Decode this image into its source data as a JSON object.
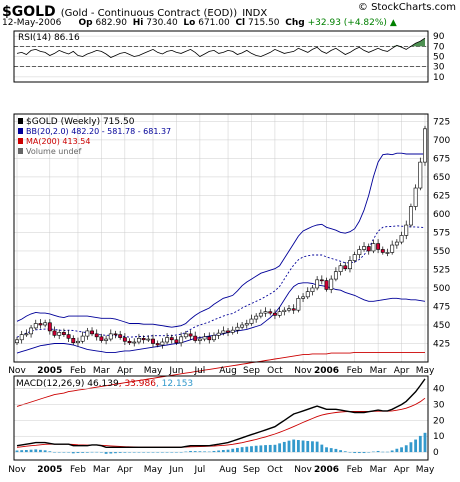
{
  "header": {
    "symbol": "$GOLD",
    "description": "(Gold - Continuous Contract (EOD))",
    "exchange": "INDX",
    "logo": "© StockCharts.com",
    "date": "12-May-2006",
    "open_label": "Op",
    "open": "682.90",
    "high_label": "Hi",
    "high": "730.40",
    "low_label": "Lo",
    "low": "671.00",
    "close_label": "Cl",
    "close": "715.50",
    "change_label": "Chg",
    "change": "+32.93 (+4.82%)",
    "change_arrow": "▲"
  },
  "colors": {
    "price_bar": "#000000",
    "up_candle": "#ffffff",
    "down_candle": "#cc0033",
    "bollinger": "#000099",
    "ma200": "#cc0000",
    "rsi_line": "#000000",
    "rsi_fill": "#2e7d32",
    "macd_line": "#000000",
    "macd_signal": "#cc0000",
    "macd_hist": "#3399cc",
    "grid": "#cccccc"
  },
  "chart_data": [
    {
      "type": "line",
      "name": "rsi",
      "label": "RSI(14) 86.16",
      "y_ticks": [
        90,
        70,
        50,
        30,
        10
      ],
      "ylim": [
        0,
        100
      ],
      "reference_lines": [
        70,
        30
      ],
      "values": [
        56,
        58,
        54,
        62,
        64,
        60,
        58,
        52,
        56,
        62,
        58,
        55,
        60,
        52,
        50,
        55,
        58,
        62,
        60,
        55,
        48,
        52,
        56,
        58,
        54,
        50,
        52,
        56,
        60,
        64,
        58,
        55,
        60,
        62,
        58,
        56,
        60,
        64,
        58,
        50,
        55,
        60,
        62,
        56,
        58,
        62,
        60,
        54,
        57,
        62,
        56,
        52,
        50,
        54,
        58,
        64,
        60,
        56,
        58,
        60,
        66,
        62,
        58,
        64,
        68,
        60,
        56,
        62,
        66,
        60,
        54,
        58,
        64,
        68,
        62,
        58,
        62,
        66,
        62,
        60,
        66,
        72,
        68,
        64,
        70,
        76,
        80,
        86
      ]
    },
    {
      "type": "candlestick",
      "name": "price",
      "legend": [
        {
          "key": "price",
          "text": "$GOLD (Weekly) 715.50"
        },
        {
          "key": "bb",
          "text": "BB(20,2.0) 482.20 - 581.78 - 681.37"
        },
        {
          "key": "ma",
          "text": "MA(200) 413.54"
        },
        {
          "key": "vol",
          "text": "Volume undef"
        }
      ],
      "y_ticks": [
        725,
        700,
        675,
        650,
        625,
        600,
        575,
        550,
        525,
        500,
        475,
        450,
        425
      ],
      "ylim": [
        400,
        735
      ],
      "x_labels": [
        "Nov",
        "2005",
        "Feb",
        "Mar",
        "Apr",
        "May",
        "Jun",
        "Jul",
        "Aug",
        "Sep",
        "Oct",
        "Nov",
        "2006",
        "Feb",
        "Mar",
        "Apr",
        "May"
      ],
      "close": [
        430,
        437,
        438,
        446,
        452,
        450,
        453,
        442,
        436,
        440,
        437,
        432,
        426,
        428,
        435,
        442,
        438,
        434,
        429,
        431,
        438,
        437,
        433,
        428,
        426,
        427,
        432,
        430,
        431,
        425,
        423,
        427,
        433,
        430,
        426,
        434,
        438,
        435,
        429,
        431,
        434,
        430,
        436,
        439,
        442,
        440,
        443,
        447,
        450,
        452,
        458,
        462,
        466,
        468,
        466,
        463,
        468,
        470,
        472,
        470,
        486,
        488,
        495,
        500,
        511,
        510,
        498,
        512,
        522,
        530,
        526,
        537,
        545,
        552,
        556,
        550,
        560,
        552,
        548,
        548,
        558,
        562,
        571,
        585,
        610,
        635,
        670,
        715
      ],
      "bb_upper": [
        455,
        458,
        462,
        465,
        467,
        466,
        466,
        465,
        463,
        461,
        460,
        462,
        462,
        462,
        462,
        462,
        461,
        460,
        459,
        459,
        459,
        458,
        456,
        454,
        452,
        452,
        452,
        451,
        451,
        451,
        450,
        449,
        448,
        447,
        448,
        449,
        452,
        458,
        463,
        467,
        470,
        473,
        478,
        482,
        486,
        488,
        490,
        496,
        503,
        508,
        512,
        516,
        520,
        522,
        524,
        526,
        530,
        540,
        550,
        560,
        570,
        577,
        580,
        583,
        585,
        586,
        582,
        580,
        578,
        575,
        574,
        576,
        580,
        590,
        605,
        625,
        650,
        670,
        680,
        681,
        680,
        682,
        682,
        681,
        681,
        681,
        681,
        681
      ],
      "bb_lower": [
        412,
        414,
        416,
        418,
        420,
        422,
        423,
        424,
        425,
        425,
        425,
        424,
        423,
        421,
        419,
        417,
        416,
        415,
        414,
        413,
        413,
        413,
        414,
        415,
        415,
        416,
        417,
        418,
        419,
        420,
        421,
        422,
        423,
        424,
        425,
        426,
        428,
        430,
        432,
        433,
        434,
        435,
        436,
        437,
        438,
        440,
        441,
        442,
        443,
        444,
        446,
        448,
        450,
        455,
        460,
        466,
        474,
        484,
        494,
        502,
        506,
        507,
        507,
        506,
        504,
        503,
        502,
        500,
        498,
        497,
        494,
        492,
        490,
        487,
        484,
        482,
        482,
        483,
        484,
        485,
        486,
        486,
        485,
        485,
        484,
        484,
        483,
        482
      ],
      "ma200": [
        340,
        342,
        344,
        346,
        348,
        350,
        352,
        354,
        356,
        357,
        358,
        360,
        361,
        362,
        363,
        364,
        365,
        366,
        367,
        368,
        369,
        370,
        371,
        372,
        373,
        374,
        375,
        376,
        377,
        378,
        379,
        380,
        381,
        382,
        383,
        384,
        385,
        386,
        387,
        388,
        389,
        390,
        391,
        392,
        393,
        394,
        395,
        396,
        397,
        398,
        399,
        400,
        401,
        402,
        403,
        404,
        405,
        406,
        407,
        408,
        409,
        410,
        410,
        411,
        411,
        411,
        411,
        412,
        412,
        412,
        412,
        412,
        413,
        413,
        413,
        413,
        413,
        413,
        413,
        413,
        413,
        413,
        413,
        413,
        413,
        413,
        413,
        413
      ]
    },
    {
      "type": "line",
      "name": "macd",
      "label_name": "MACD(12,26,9)",
      "macd_value": "46.139",
      "signal_value": "33.986",
      "hist_value": "12.153",
      "y_ticks": [
        40,
        30,
        20,
        10,
        0
      ],
      "ylim": [
        -5,
        48
      ],
      "x_labels": [
        "Nov",
        "2005",
        "Feb",
        "Mar",
        "Apr",
        "May",
        "Jun",
        "Jul",
        "Aug",
        "Sep",
        "Oct",
        "Nov",
        "2006",
        "Feb",
        "Mar",
        "Apr",
        "May"
      ],
      "macd": [
        4,
        4.5,
        5,
        5.5,
        6,
        6,
        6,
        5.5,
        5,
        5,
        5,
        5,
        4,
        4,
        4,
        4,
        4.5,
        4.5,
        4,
        3,
        3,
        3,
        3,
        3,
        3,
        3,
        3,
        3,
        3,
        3,
        3,
        3,
        3,
        3,
        3,
        3,
        3.5,
        4,
        4,
        4,
        4,
        4,
        4.5,
        5,
        5.5,
        6,
        7,
        8,
        9,
        10,
        11,
        12,
        13,
        14,
        15,
        16,
        18,
        20,
        22,
        24,
        25,
        26,
        27,
        28,
        29,
        28,
        27,
        27,
        27,
        26.5,
        26,
        25.5,
        25,
        25,
        25,
        25.5,
        26,
        26.5,
        26,
        26,
        27,
        28.5,
        30,
        32,
        35,
        38,
        42,
        46.139
      ],
      "signal": [
        3,
        3.3,
        3.7,
        4,
        4.3,
        4.6,
        4.9,
        5,
        5,
        5,
        5,
        5,
        4.8,
        4.6,
        4.5,
        4.4,
        4.4,
        4.4,
        4.3,
        4.1,
        3.9,
        3.7,
        3.5,
        3.4,
        3.3,
        3.2,
        3.1,
        3.1,
        3.1,
        3.1,
        3.1,
        3.1,
        3.1,
        3.1,
        3.1,
        3.1,
        3.2,
        3.3,
        3.4,
        3.5,
        3.6,
        3.7,
        3.8,
        4,
        4.2,
        4.5,
        4.9,
        5.4,
        5.9,
        6.6,
        7.3,
        8,
        8.8,
        9.6,
        10.5,
        11.4,
        12.5,
        13.6,
        14.8,
        16.1,
        17.4,
        18.7,
        20,
        21.2,
        22.4,
        23.3,
        24,
        24.5,
        25,
        25.3,
        25.5,
        25.6,
        25.6,
        25.6,
        25.6,
        25.6,
        25.7,
        25.8,
        25.8,
        25.8,
        26,
        26.4,
        27,
        27.7,
        28.8,
        30.1,
        31.8,
        33.986
      ],
      "histogram": [
        1,
        1.2,
        1.3,
        1.5,
        1.7,
        1.4,
        1.1,
        0.5,
        0,
        0,
        0,
        0,
        -0.8,
        -0.6,
        -0.5,
        -0.4,
        0.1,
        0.1,
        -0.3,
        -1.1,
        -0.9,
        -0.7,
        -0.5,
        -0.4,
        -0.3,
        -0.2,
        -0.1,
        -0.1,
        -0.1,
        -0.1,
        -0.1,
        -0.1,
        -0.1,
        -0.1,
        -0.1,
        -0.1,
        0.3,
        0.7,
        0.6,
        0.5,
        0.4,
        0.3,
        0.7,
        1,
        1.3,
        1.5,
        2.1,
        2.6,
        3.1,
        3.4,
        3.7,
        4,
        4.2,
        4.4,
        4.5,
        4.6,
        5.5,
        6.4,
        7.2,
        7.9,
        7.6,
        7.3,
        7,
        6.8,
        6.6,
        4.7,
        3,
        2.5,
        2,
        1.2,
        0.5,
        -0.1,
        -0.6,
        -0.6,
        -0.6,
        -0.1,
        0.3,
        0.7,
        0.2,
        0.2,
        1,
        2.1,
        3,
        4.3,
        6.2,
        7.9,
        10.2,
        12.153
      ]
    }
  ]
}
